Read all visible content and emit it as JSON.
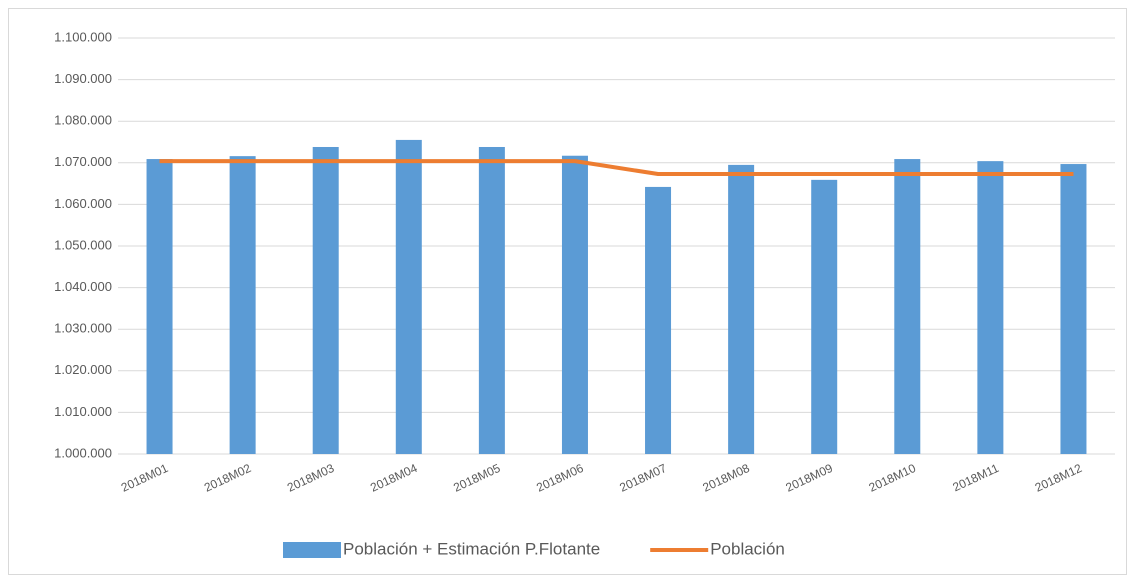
{
  "chart_data": {
    "type": "bar",
    "categories": [
      "2018M01",
      "2018M02",
      "2018M03",
      "2018M04",
      "2018M05",
      "2018M06",
      "2018M07",
      "2018M08",
      "2018M09",
      "2018M10",
      "2018M11",
      "2018M12"
    ],
    "series": [
      {
        "name": "Población + Estimación P.Flotante",
        "type": "bar",
        "color": "#5b9bd5",
        "values": [
          1070900,
          1071600,
          1073800,
          1075500,
          1073800,
          1071700,
          1064200,
          1069500,
          1065900,
          1070900,
          1070400,
          1069700
        ]
      },
      {
        "name": "Población",
        "type": "line",
        "color": "#ed7d31",
        "values": [
          1070400,
          1070400,
          1070400,
          1070400,
          1070400,
          1070400,
          1067300,
          1067300,
          1067300,
          1067300,
          1067300,
          1067300
        ]
      }
    ],
    "ylim": [
      1000000,
      1100000
    ],
    "yticks": [
      {
        "value": 1000000,
        "label": "1.000.000"
      },
      {
        "value": 1010000,
        "label": "1.010.000"
      },
      {
        "value": 1020000,
        "label": "1.020.000"
      },
      {
        "value": 1030000,
        "label": "1.030.000"
      },
      {
        "value": 1040000,
        "label": "1.040.000"
      },
      {
        "value": 1050000,
        "label": "1.050.000"
      },
      {
        "value": 1060000,
        "label": "1.060.000"
      },
      {
        "value": 1070000,
        "label": "1.070.000"
      },
      {
        "value": 1080000,
        "label": "1.080.000"
      },
      {
        "value": 1090000,
        "label": "1.090.000"
      },
      {
        "value": 1100000,
        "label": "1.100.000"
      }
    ],
    "grid": true,
    "legend": "bottom"
  }
}
